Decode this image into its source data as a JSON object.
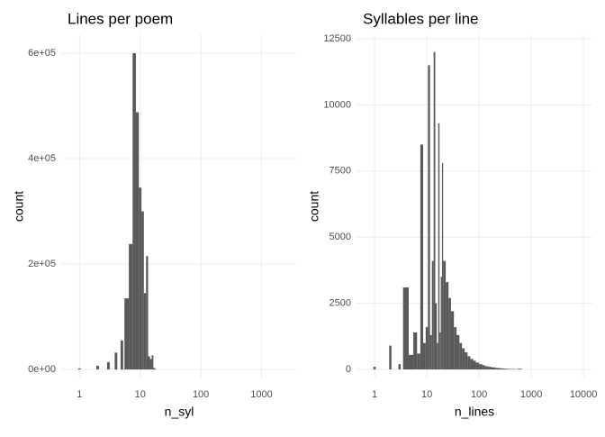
{
  "chart_data": [
    {
      "type": "histogram",
      "title": "Lines per poem",
      "x_label": "n_syl",
      "y_label": "count",
      "color": "#595959",
      "x_log": true,
      "grid": true,
      "bins": [
        0.95,
        1.05,
        1.9,
        2.1,
        2.85,
        3.15,
        3.8,
        4.2,
        4.75,
        5.25,
        5.5,
        6.5,
        7.5,
        8.5,
        9.5,
        10.5,
        11.5,
        12.5,
        13.5,
        14.5,
        15.5,
        16.5,
        17.5,
        18.5
      ],
      "values": [
        2000,
        0,
        7000,
        0,
        14000,
        0,
        32000,
        0,
        55000,
        0,
        135000,
        238000,
        600000,
        488000,
        345000,
        300000,
        145000,
        215000,
        25000,
        20000,
        27000,
        3000,
        1000
      ],
      "xlim": [
        0.5,
        3850
      ],
      "xticks": [
        1,
        10,
        100,
        1000
      ],
      "ylim": [
        -17000,
        636000
      ],
      "yticks": [
        {
          "value": 0,
          "label": "0e+00"
        },
        {
          "value": 200000,
          "label": "2e+05"
        },
        {
          "value": 400000,
          "label": "4e+05"
        },
        {
          "value": 600000,
          "label": "6e+05"
        }
      ]
    },
    {
      "type": "histogram",
      "title": "Syllables per line",
      "x_label": "n_lines",
      "y_label": "count",
      "color": "#595959",
      "x_log": true,
      "grid": true,
      "bins": [
        0.95,
        1.05,
        1.9,
        2.1,
        2.85,
        3.15,
        3.5,
        4.5,
        5.5,
        6.5,
        7.5,
        8.5,
        9.5,
        10.5,
        11.5,
        12.5,
        13.5,
        14.5,
        15.5,
        16.5,
        17.5,
        18.5,
        19.5,
        20.5,
        23,
        26,
        29,
        33,
        37,
        42,
        47,
        53,
        60,
        68,
        77,
        87,
        100,
        115,
        130,
        150,
        170,
        200,
        230,
        260,
        300,
        350,
        400,
        470,
        550,
        650
      ],
      "values": [
        100,
        0,
        900,
        0,
        200,
        0,
        3100,
        550,
        1400,
        600,
        8500,
        1000,
        1600,
        11500,
        1300,
        4100,
        12000,
        2500,
        1000,
        9300,
        1400,
        3500,
        7800,
        4100,
        3300,
        2700,
        2200,
        1600,
        1300,
        1000,
        800,
        650,
        500,
        400,
        330,
        260,
        200,
        160,
        120,
        100,
        80,
        60,
        50,
        40,
        30,
        20,
        15,
        10,
        30
      ],
      "xlim": [
        0.45,
        14800
      ],
      "xticks": [
        1,
        10,
        100,
        1000,
        10000
      ],
      "ylim": [
        -340,
        12670
      ],
      "yticks": [
        0,
        2500,
        5000,
        7500,
        10000,
        12500
      ]
    }
  ]
}
